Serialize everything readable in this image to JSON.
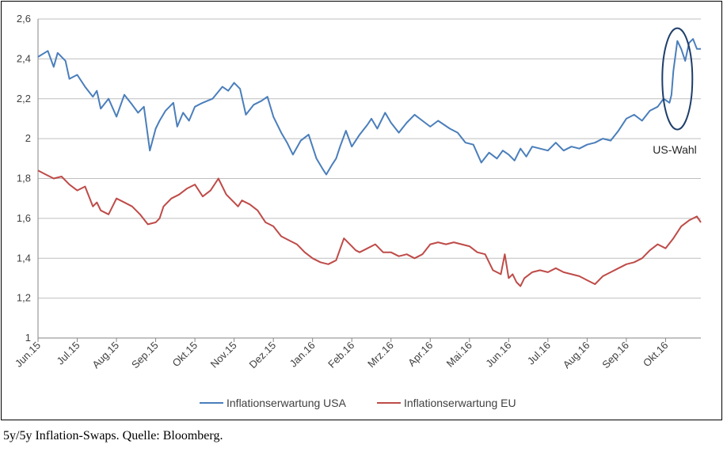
{
  "caption": "5y/5y Inflation-Swaps. Quelle: Bloomberg.",
  "chart_data": {
    "type": "line",
    "title": "",
    "xlabel": "",
    "ylabel": "",
    "ylim": [
      1,
      2.6
    ],
    "yticks": [
      "1",
      "1,2",
      "1,4",
      "1,6",
      "1,8",
      "2",
      "2,2",
      "2,4",
      "2,6"
    ],
    "ytick_values": [
      1,
      1.2,
      1.4,
      1.6,
      1.8,
      2.0,
      2.2,
      2.4,
      2.6
    ],
    "xticks": [
      "Jun.15",
      "Jul.15",
      "Aug.15",
      "Sep.15",
      "Okt.15",
      "Nov.15",
      "Dez.15",
      "Jan.16",
      "Feb.16",
      "Mrz.16",
      "Apr.16",
      "Mai.16",
      "Jun.16",
      "Jul.16",
      "Aug.16",
      "Sep.16",
      "Okt.16"
    ],
    "x_month_range": [
      0,
      16.9
    ],
    "grid": "horizontal",
    "legend_position": "bottom",
    "annotation": "US-Wahl",
    "series": [
      {
        "name": "Inflationserwartung USA",
        "color": "#4a7ebb",
        "x": [
          0,
          0.25,
          0.4,
          0.5,
          0.7,
          0.8,
          1.0,
          1.2,
          1.4,
          1.5,
          1.6,
          1.8,
          2.0,
          2.2,
          2.4,
          2.55,
          2.7,
          2.85,
          3.0,
          3.1,
          3.25,
          3.45,
          3.55,
          3.7,
          3.85,
          4.0,
          4.2,
          4.45,
          4.7,
          4.85,
          5.0,
          5.15,
          5.3,
          5.5,
          5.7,
          5.85,
          6.0,
          6.2,
          6.35,
          6.5,
          6.7,
          6.9,
          7.1,
          7.25,
          7.35,
          7.5,
          7.6,
          7.7,
          7.85,
          8.0,
          8.2,
          8.4,
          8.5,
          8.65,
          8.85,
          9.0,
          9.2,
          9.4,
          9.6,
          9.8,
          10.0,
          10.2,
          10.35,
          10.5,
          10.7,
          10.9,
          11.1,
          11.3,
          11.5,
          11.7,
          11.85,
          12.0,
          12.15,
          12.3,
          12.45,
          12.6,
          12.8,
          13.0,
          13.2,
          13.4,
          13.6,
          13.8,
          14.0,
          14.2,
          14.4,
          14.6,
          14.8,
          15.0,
          15.2,
          15.4,
          15.6,
          15.8,
          15.95,
          16.1,
          16.15,
          16.2,
          16.3,
          16.4,
          16.5,
          16.6,
          16.7,
          16.8,
          16.9
        ],
        "y": [
          2.41,
          2.44,
          2.36,
          2.43,
          2.39,
          2.3,
          2.32,
          2.26,
          2.21,
          2.24,
          2.15,
          2.2,
          2.11,
          2.22,
          2.17,
          2.13,
          2.16,
          1.94,
          2.05,
          2.09,
          2.14,
          2.18,
          2.06,
          2.13,
          2.09,
          2.16,
          2.18,
          2.2,
          2.26,
          2.24,
          2.28,
          2.25,
          2.12,
          2.17,
          2.19,
          2.21,
          2.11,
          2.03,
          1.98,
          1.92,
          1.99,
          2.02,
          1.9,
          1.85,
          1.82,
          1.87,
          1.9,
          1.96,
          2.04,
          1.96,
          2.02,
          2.07,
          2.1,
          2.05,
          2.13,
          2.08,
          2.03,
          2.08,
          2.12,
          2.09,
          2.06,
          2.09,
          2.07,
          2.05,
          2.03,
          1.98,
          1.97,
          1.88,
          1.93,
          1.9,
          1.94,
          1.92,
          1.89,
          1.95,
          1.91,
          1.96,
          1.95,
          1.94,
          1.98,
          1.94,
          1.96,
          1.95,
          1.97,
          1.98,
          2.0,
          1.99,
          2.04,
          2.1,
          2.12,
          2.09,
          2.14,
          2.16,
          2.2,
          2.18,
          2.22,
          2.34,
          2.49,
          2.45,
          2.39,
          2.48,
          2.5,
          2.45,
          2.45
        ]
      },
      {
        "name": "Inflationserwartung EU",
        "color": "#be4b48",
        "x": [
          0,
          0.2,
          0.4,
          0.6,
          0.8,
          1.0,
          1.2,
          1.4,
          1.5,
          1.6,
          1.8,
          2.0,
          2.2,
          2.4,
          2.6,
          2.8,
          3.0,
          3.1,
          3.2,
          3.4,
          3.6,
          3.8,
          4.0,
          4.2,
          4.4,
          4.6,
          4.8,
          5.0,
          5.1,
          5.2,
          5.4,
          5.6,
          5.8,
          6.0,
          6.2,
          6.4,
          6.6,
          6.8,
          7.0,
          7.2,
          7.4,
          7.6,
          7.8,
          8.0,
          8.1,
          8.2,
          8.4,
          8.6,
          8.8,
          9.0,
          9.2,
          9.4,
          9.6,
          9.8,
          10.0,
          10.2,
          10.4,
          10.6,
          10.8,
          11.0,
          11.2,
          11.4,
          11.6,
          11.8,
          11.9,
          12.0,
          12.1,
          12.2,
          12.3,
          12.4,
          12.6,
          12.8,
          13.0,
          13.2,
          13.4,
          13.6,
          13.8,
          14.0,
          14.2,
          14.4,
          14.6,
          14.8,
          15.0,
          15.2,
          15.4,
          15.6,
          15.8,
          16.0,
          16.2,
          16.4,
          16.6,
          16.8,
          16.9
        ],
        "y": [
          1.84,
          1.82,
          1.8,
          1.81,
          1.77,
          1.74,
          1.76,
          1.66,
          1.68,
          1.64,
          1.62,
          1.7,
          1.68,
          1.66,
          1.62,
          1.57,
          1.58,
          1.6,
          1.66,
          1.7,
          1.72,
          1.75,
          1.77,
          1.71,
          1.74,
          1.8,
          1.72,
          1.68,
          1.66,
          1.69,
          1.67,
          1.64,
          1.58,
          1.56,
          1.51,
          1.49,
          1.47,
          1.43,
          1.4,
          1.38,
          1.37,
          1.39,
          1.5,
          1.46,
          1.44,
          1.43,
          1.45,
          1.47,
          1.43,
          1.43,
          1.41,
          1.42,
          1.4,
          1.42,
          1.47,
          1.48,
          1.47,
          1.48,
          1.47,
          1.46,
          1.43,
          1.42,
          1.34,
          1.32,
          1.42,
          1.3,
          1.32,
          1.28,
          1.26,
          1.3,
          1.33,
          1.34,
          1.33,
          1.35,
          1.33,
          1.32,
          1.31,
          1.29,
          1.27,
          1.31,
          1.33,
          1.35,
          1.37,
          1.38,
          1.4,
          1.44,
          1.47,
          1.45,
          1.5,
          1.56,
          1.59,
          1.61,
          1.58
        ]
      }
    ]
  }
}
